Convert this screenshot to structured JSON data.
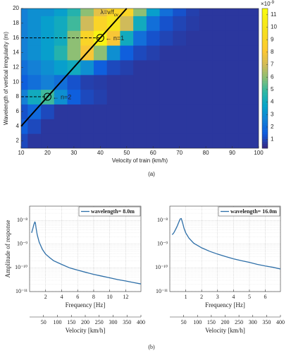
{
  "labels": [
    "(a)",
    "(b)"
  ],
  "chart_data": [
    {
      "type": "contour",
      "xlabel": "Velocity of train (km/h)",
      "ylabel": "Wavelength of vertical irregularity (m)",
      "xlim": [
        10,
        100
      ],
      "ylim": [
        1,
        20
      ],
      "xticks": [
        10,
        20,
        30,
        40,
        50,
        60,
        70,
        80,
        90,
        100
      ],
      "yticks": [
        2,
        4,
        6,
        8,
        10,
        12,
        14,
        16,
        18,
        20
      ],
      "x": [
        10,
        15,
        20,
        25,
        30,
        35,
        40,
        45,
        50,
        55,
        60,
        65,
        70,
        75,
        80,
        85,
        90,
        95,
        100
      ],
      "y": [
        2,
        4,
        6,
        8,
        10,
        12,
        14,
        16,
        18,
        20
      ],
      "z": [
        [
          1.0,
          0.6,
          0.6,
          0.6,
          0.6,
          0.6,
          0.6,
          0.6,
          0.6,
          0.6,
          0.6,
          0.6,
          0.6,
          0.6,
          0.6,
          0.6,
          0.6,
          0.6,
          0.6
        ],
        [
          1.5,
          1.0,
          0.6,
          0.6,
          0.6,
          0.6,
          0.6,
          0.6,
          0.6,
          0.6,
          0.6,
          0.6,
          0.6,
          0.6,
          0.6,
          0.6,
          0.6,
          0.6,
          0.6
        ],
        [
          1.2,
          1.8,
          1.0,
          0.6,
          0.6,
          0.6,
          0.6,
          0.6,
          0.6,
          0.6,
          0.6,
          0.6,
          0.6,
          0.6,
          0.6,
          0.6,
          0.6,
          0.6,
          0.6
        ],
        [
          2.5,
          4,
          5,
          3,
          1.5,
          1.0,
          0.8,
          0.6,
          0.6,
          0.6,
          0.6,
          0.6,
          0.6,
          0.6,
          0.6,
          0.6,
          0.6,
          0.6,
          0.6
        ],
        [
          1.5,
          2,
          2.5,
          2,
          1.2,
          0.8,
          0.7,
          0.6,
          0.6,
          0.6,
          0.6,
          0.6,
          0.6,
          0.6,
          0.6,
          0.6,
          0.6,
          0.6,
          0.6
        ],
        [
          2,
          2.5,
          3,
          3.5,
          4,
          3,
          1.5,
          1,
          0.8,
          0.6,
          0.6,
          0.6,
          0.6,
          0.6,
          0.6,
          0.6,
          0.6,
          0.6,
          0.6
        ],
        [
          2.5,
          3,
          3.5,
          4.5,
          6,
          8,
          6,
          3,
          1.5,
          1,
          0.8,
          0.6,
          0.6,
          0.6,
          0.6,
          0.6,
          0.6,
          0.6,
          0.6
        ],
        [
          2.5,
          3,
          3.5,
          4,
          6,
          9,
          11,
          8,
          4,
          2,
          1.2,
          0.9,
          0.7,
          0.6,
          0.6,
          0.6,
          0.6,
          0.6,
          0.6
        ],
        [
          2.5,
          3,
          3.5,
          4,
          5,
          7,
          9,
          10,
          7,
          4,
          2,
          1.2,
          0.9,
          0.7,
          0.6,
          0.6,
          0.6,
          0.6,
          0.6
        ],
        [
          2.5,
          3,
          3,
          3.5,
          4.5,
          6,
          7.5,
          9,
          9,
          6,
          3.5,
          2,
          1.2,
          0.8,
          0.6,
          0.6,
          0.6,
          0.6,
          0.6
        ]
      ],
      "clim": [
        0.3,
        11.5
      ],
      "cticks": [
        1,
        2,
        3,
        4,
        5,
        6,
        7,
        8,
        9,
        10,
        11
      ],
      "cscale_base": "×10",
      "cscale_exp": "-9",
      "line": {
        "x": [
          10,
          50
        ],
        "y": [
          4,
          20
        ]
      },
      "line_label": "λ=v/f",
      "line_label_sub": "cv",
      "points": {
        "x": [
          40,
          20
        ],
        "y": [
          16,
          8
        ],
        "labels": [
          "← n=1",
          "← n=2"
        ]
      }
    },
    {
      "type": "line",
      "xlabel": "Frequency [Hz]",
      "x2label": "Velocity [km/h]",
      "ylabel": "Amplitude of response",
      "log_y": true,
      "grid": true,
      "xlim": [
        0,
        13.9
      ],
      "xticks": [
        2,
        4,
        6,
        8,
        10,
        12
      ],
      "x2lim": [
        0,
        400
      ],
      "x2ticks": [
        50,
        100,
        150,
        200,
        250,
        300,
        350,
        400
      ],
      "ylim": [
        1e-11,
        4e-08
      ],
      "yticks": [
        {
          "value": 1e-11,
          "label": "10⁻¹¹"
        },
        {
          "value": 1e-10,
          "label": "10⁻¹⁰"
        },
        {
          "value": 1e-09,
          "label": "10⁻⁹"
        },
        {
          "value": 1e-08,
          "label": "10⁻⁸"
        }
      ],
      "series": [
        {
          "name": "wavelength= 8.0m",
          "color": "#2e6fa8",
          "x": [
            0.25,
            0.4,
            0.55,
            0.65,
            0.72,
            0.8,
            0.95,
            1.2,
            1.6,
            2,
            2.5,
            3,
            4,
            5,
            6,
            7,
            8,
            9,
            10,
            11,
            12,
            13,
            13.9
          ],
          "values": [
            3e-09,
            4.5e-09,
            7e-09,
            8.5e-09,
            8e-09,
            5e-09,
            2.5e-09,
            1.2e-09,
            6e-10,
            3.8e-10,
            2.7e-10,
            2e-10,
            1.4e-10,
            1e-10,
            8e-11,
            6.5e-11,
            5.3e-11,
            4.5e-11,
            3.8e-11,
            3.2e-11,
            2.8e-11,
            2.4e-11,
            2.1e-11
          ]
        }
      ]
    },
    {
      "type": "line",
      "xlabel": "Frequency [Hz]",
      "x2label": "Velocity [km/h]",
      "log_y": true,
      "grid": true,
      "xlim": [
        0,
        6.95
      ],
      "xticks": [
        1,
        2,
        3,
        4,
        5,
        6
      ],
      "x2lim": [
        0,
        400
      ],
      "x2ticks": [
        50,
        100,
        150,
        200,
        250,
        300,
        350,
        400
      ],
      "ylim": [
        1e-11,
        4e-08
      ],
      "yticks": [
        {
          "value": 1e-11,
          "label": "10⁻¹¹"
        },
        {
          "value": 1e-10,
          "label": "10⁻¹⁰"
        },
        {
          "value": 1e-09,
          "label": "10⁻⁹"
        },
        {
          "value": 1e-08,
          "label": "10⁻⁸"
        }
      ],
      "series": [
        {
          "name": "wavelength= 16.0m",
          "color": "#2e6fa8",
          "x": [
            0.15,
            0.25,
            0.35,
            0.45,
            0.55,
            0.65,
            0.72,
            0.8,
            0.9,
            1,
            1.2,
            1.5,
            2,
            2.5,
            3,
            3.5,
            4,
            4.5,
            5,
            5.5,
            6,
            6.5,
            6.95
          ],
          "values": [
            2.5e-09,
            3e-09,
            4e-09,
            5.5e-09,
            8e-09,
            1.15e-08,
            1.2e-08,
            8e-09,
            4.5e-09,
            3e-09,
            1.8e-09,
            1.1e-09,
            7e-10,
            5e-10,
            3.8e-10,
            3e-10,
            2.4e-10,
            2e-10,
            1.7e-10,
            1.4e-10,
            1.2e-10,
            1.05e-10,
            9e-11
          ]
        }
      ]
    }
  ]
}
